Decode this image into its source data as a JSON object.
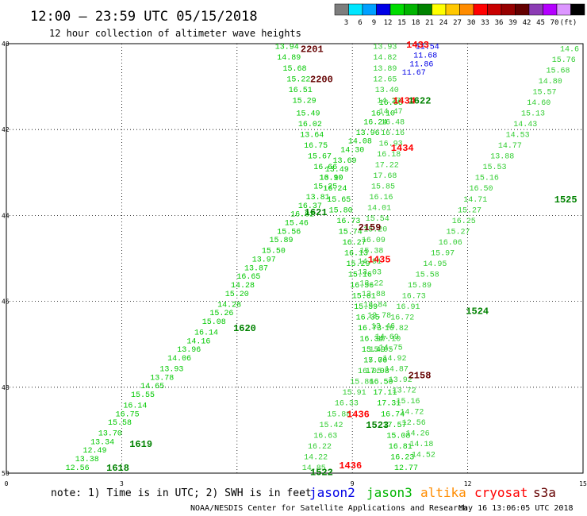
{
  "header": {
    "title": "12:00 — 23:59 UTC 05/15/2018",
    "subtitle": "12 hour collection of altimeter wave heights"
  },
  "color_scale": {
    "colors": [
      "#7d7d7d",
      "#00e6ff",
      "#00a0ff",
      "#0000e6",
      "#00dc00",
      "#00b400",
      "#008200",
      "#ffff00",
      "#ffc800",
      "#ff8c00",
      "#ff0000",
      "#c80000",
      "#960000",
      "#640000",
      "#8c3cb4",
      "#b400ff",
      "#dc96ff",
      "#000000"
    ],
    "labels": [
      "3",
      "6",
      "9",
      "12",
      "15",
      "18",
      "21",
      "24",
      "27",
      "30",
      "33",
      "36",
      "39",
      "42",
      "45",
      "70",
      "(ft)"
    ]
  },
  "footer": {
    "note": "note: 1) Time is in UTC; 2) SWH is in feet",
    "credit": "NOAA/NESDIS Center for Satellite Applications and Research",
    "timestamp": "May 16 13:06:05 UTC 2018"
  },
  "chart_data": {
    "type": "scatter",
    "title": "12:00 — 23:59 UTC 05/15/2018",
    "subtitle": "12 hour collection of altimeter wave heights",
    "xlim": [
      0,
      15
    ],
    "ylim": [
      -50,
      -40
    ],
    "x_ticks": [
      "0",
      "3",
      "9",
      "12",
      "15"
    ],
    "y_ticks": [
      "40",
      "42",
      "44",
      "46",
      "48",
      "50"
    ],
    "grid": true,
    "legend_position": "bottom",
    "units": "ft",
    "series": [
      {
        "name": "jason2",
        "color": "#0000e6"
      },
      {
        "name": "jason3",
        "color": "#00b400"
      },
      {
        "name": "altika",
        "color": "#ff8c00"
      },
      {
        "name": "cryosat",
        "color": "#ff0000"
      },
      {
        "name": "s3a",
        "color": "#640000"
      }
    ],
    "track_times": [
      {
        "label": "2201",
        "x": 7.95,
        "y": -40.1,
        "color": "#640000"
      },
      {
        "label": "2200",
        "x": 8.2,
        "y": -40.8,
        "color": "#640000"
      },
      {
        "label": "1433",
        "x": 10.7,
        "y": -40.0,
        "color": "#ff0000"
      },
      {
        "label": "1434",
        "x": 10.35,
        "y": -41.3,
        "color": "#ff0000"
      },
      {
        "label": "1622",
        "x": 10.75,
        "y": -41.3,
        "color": "#008200"
      },
      {
        "label": "1434",
        "x": 10.3,
        "y": -42.4,
        "color": "#ff0000"
      },
      {
        "label": "1621",
        "x": 8.05,
        "y": -43.9,
        "color": "#008200"
      },
      {
        "label": "2159",
        "x": 9.45,
        "y": -44.25,
        "color": "#640000"
      },
      {
        "label": "1435",
        "x": 9.7,
        "y": -45.0,
        "color": "#ff0000"
      },
      {
        "label": "1525",
        "x": 14.55,
        "y": -43.6,
        "color": "#008200"
      },
      {
        "label": "1524",
        "x": 12.25,
        "y": -46.2,
        "color": "#008200"
      },
      {
        "label": "1620",
        "x": 6.2,
        "y": -46.6,
        "color": "#008200"
      },
      {
        "label": "2158",
        "x": 10.75,
        "y": -47.7,
        "color": "#640000"
      },
      {
        "label": "1436",
        "x": 9.15,
        "y": -48.6,
        "color": "#ff0000"
      },
      {
        "label": "1523",
        "x": 9.65,
        "y": -48.85,
        "color": "#008200"
      },
      {
        "label": "1619",
        "x": 3.5,
        "y": -49.3,
        "color": "#008200"
      },
      {
        "label": "1618",
        "x": 2.9,
        "y": -49.85,
        "color": "#008200"
      },
      {
        "label": "1436",
        "x": 8.95,
        "y": -49.8,
        "color": "#ff0000"
      },
      {
        "label": "1522",
        "x": 8.2,
        "y": -49.95,
        "color": "#008200"
      }
    ],
    "tracks": [
      {
        "id": "jason3-1618-1622",
        "color": "#00c800",
        "points": [
          [
            1.85,
            -49.85,
            "12.56"
          ],
          [
            2.1,
            -49.65,
            "13.38"
          ],
          [
            2.3,
            -49.45,
            "12.49"
          ],
          [
            2.5,
            -49.25,
            "13.34"
          ],
          [
            2.7,
            -49.05,
            "13.70"
          ],
          [
            2.95,
            -48.8,
            "15.58"
          ],
          [
            3.15,
            -48.6,
            "16.75"
          ],
          [
            3.35,
            -48.4,
            "16.14"
          ],
          [
            3.55,
            -48.15,
            "15.55"
          ],
          [
            3.8,
            -47.95,
            "14.65"
          ],
          [
            4.05,
            -47.75,
            "13.78"
          ],
          [
            4.3,
            -47.55,
            "13.93"
          ],
          [
            4.5,
            -47.3,
            "14.06"
          ],
          [
            4.75,
            -47.1,
            "13.96"
          ],
          [
            5.0,
            -46.9,
            "14.16"
          ],
          [
            5.2,
            -46.7,
            "16.14"
          ],
          [
            5.4,
            -46.45,
            "15.08"
          ],
          [
            5.6,
            -46.25,
            "15.26"
          ],
          [
            5.8,
            -46.05,
            "14.28"
          ],
          [
            6.0,
            -45.8,
            "15.20"
          ],
          [
            6.15,
            -45.6,
            "14.28"
          ],
          [
            6.3,
            -45.4,
            "16.65"
          ],
          [
            6.5,
            -45.2,
            "13.87"
          ],
          [
            6.7,
            -45.0,
            "13.97"
          ],
          [
            6.95,
            -44.8,
            "15.50"
          ],
          [
            7.15,
            -44.55,
            "15.89"
          ],
          [
            7.35,
            -44.35,
            "15.56"
          ],
          [
            7.55,
            -44.15,
            "15.46"
          ],
          [
            7.7,
            -43.95,
            "16.82"
          ],
          [
            7.9,
            -43.75,
            "16.37"
          ],
          [
            8.1,
            -43.55,
            "13.81"
          ],
          [
            8.3,
            -43.3,
            "15.25"
          ],
          [
            8.45,
            -43.1,
            "13.90"
          ],
          [
            8.6,
            -42.9,
            "13.49"
          ],
          [
            8.8,
            -42.7,
            "13.69"
          ],
          [
            9.0,
            -42.45,
            "14.30"
          ],
          [
            9.2,
            -42.25,
            "14.08"
          ],
          [
            9.4,
            -42.05,
            "13.96"
          ],
          [
            9.6,
            -41.8,
            "16.24"
          ],
          [
            9.8,
            -41.6,
            "16.10"
          ],
          [
            10.0,
            -41.35,
            "16.66"
          ]
        ]
      },
      {
        "id": "jason3-2158-2201",
        "color": "#00c800",
        "points": [
          [
            7.3,
            -40.05,
            "13.94"
          ],
          [
            7.35,
            -40.3,
            "14.89"
          ],
          [
            7.5,
            -40.55,
            "15.68"
          ],
          [
            7.6,
            -40.8,
            "15.22"
          ],
          [
            7.65,
            -41.05,
            "16.51"
          ],
          [
            7.75,
            -41.3,
            "15.29"
          ],
          [
            7.85,
            -41.6,
            "15.49"
          ],
          [
            7.9,
            -41.85,
            "16.02"
          ],
          [
            7.95,
            -42.1,
            "13.64"
          ],
          [
            8.05,
            -42.35,
            "16.75"
          ],
          [
            8.15,
            -42.6,
            "15.67"
          ],
          [
            8.3,
            -42.85,
            "16.66"
          ],
          [
            8.45,
            -43.1,
            "16.10"
          ],
          [
            8.55,
            -43.35,
            "16.24"
          ],
          [
            8.65,
            -43.6,
            "15.65"
          ],
          [
            8.7,
            -43.85,
            "15.80"
          ],
          [
            8.9,
            -44.1,
            "16.73"
          ],
          [
            8.95,
            -44.35,
            "15.74"
          ],
          [
            9.05,
            -44.6,
            "16.27"
          ],
          [
            9.1,
            -44.85,
            "16.13"
          ],
          [
            9.15,
            -45.1,
            "15.29"
          ],
          [
            9.2,
            -45.35,
            "15.16"
          ],
          [
            9.25,
            -45.6,
            "16.56"
          ],
          [
            9.3,
            -45.85,
            "15.61"
          ],
          [
            9.35,
            -46.1,
            "15.59"
          ],
          [
            9.4,
            -46.35,
            "16.35"
          ],
          [
            9.45,
            -46.6,
            "16.73"
          ],
          [
            9.5,
            -46.85,
            "16.34"
          ],
          [
            9.55,
            -47.1,
            "15.49"
          ],
          [
            9.6,
            -47.35,
            "17.06"
          ],
          [
            9.65,
            -47.6,
            "17.08"
          ],
          [
            9.75,
            -47.85,
            "16.50"
          ],
          [
            9.85,
            -48.1,
            "17.11"
          ],
          [
            9.95,
            -48.35,
            "17.31"
          ],
          [
            10.05,
            -48.6,
            "16.74"
          ],
          [
            10.1,
            -48.85,
            "17.57"
          ],
          [
            10.2,
            -49.1,
            "15.08"
          ],
          [
            10.25,
            -49.35,
            "16.81"
          ],
          [
            10.3,
            -49.6,
            "16.23"
          ],
          [
            10.4,
            -49.85,
            "12.77"
          ]
        ]
      },
      {
        "id": "jason3-1433-1436",
        "color": "#32cd32",
        "points": [
          [
            9.85,
            -40.05,
            "13.93"
          ],
          [
            9.85,
            -40.3,
            "14.82"
          ],
          [
            9.85,
            -40.55,
            "13.89"
          ],
          [
            9.85,
            -40.8,
            "12.65"
          ],
          [
            9.9,
            -41.05,
            "13.40"
          ],
          [
            9.95,
            -41.3,
            "14.27"
          ],
          [
            10.0,
            -41.55,
            "14.47"
          ],
          [
            10.05,
            -41.8,
            "16.48"
          ],
          [
            10.05,
            -42.05,
            "16.16"
          ],
          [
            10.0,
            -42.3,
            "16.93"
          ],
          [
            9.95,
            -42.55,
            "16.18"
          ],
          [
            9.9,
            -42.8,
            "17.22"
          ],
          [
            9.85,
            -43.05,
            "17.68"
          ],
          [
            9.8,
            -43.3,
            "15.85"
          ],
          [
            9.75,
            -43.55,
            "16.16"
          ],
          [
            9.7,
            -43.8,
            "14.01"
          ],
          [
            9.65,
            -44.05,
            "15.54"
          ],
          [
            9.6,
            -44.3,
            "15.20"
          ],
          [
            9.55,
            -44.55,
            "16.09"
          ],
          [
            9.5,
            -44.8,
            "15.38"
          ],
          [
            9.45,
            -45.05,
            "14.91"
          ],
          [
            9.45,
            -45.3,
            "13.03"
          ],
          [
            9.5,
            -45.55,
            "13.22"
          ],
          [
            9.55,
            -45.8,
            "13.88"
          ],
          [
            9.6,
            -46.05,
            "13.84"
          ],
          [
            9.7,
            -46.3,
            "12.78"
          ],
          [
            9.8,
            -46.55,
            "13.46"
          ],
          [
            9.9,
            -46.8,
            "14.69"
          ],
          [
            10.0,
            -47.05,
            "14.75"
          ],
          [
            10.1,
            -47.3,
            "14.92"
          ],
          [
            10.15,
            -47.55,
            "14.87"
          ],
          [
            10.25,
            -47.8,
            "13.92"
          ],
          [
            10.35,
            -48.05,
            "13.72"
          ],
          [
            10.45,
            -48.3,
            "15.16"
          ],
          [
            10.55,
            -48.55,
            "14.72"
          ],
          [
            10.6,
            -48.8,
            "12.56"
          ],
          [
            10.7,
            -49.05,
            "14.26"
          ],
          [
            10.8,
            -49.3,
            "14.18"
          ],
          [
            10.85,
            -49.55,
            "14.52"
          ]
        ]
      },
      {
        "id": "jason3-1522-1525",
        "color": "#32cd32",
        "points": [
          [
            8.0,
            -49.85,
            "14.85"
          ],
          [
            8.05,
            -49.6,
            "14.22"
          ],
          [
            8.15,
            -49.35,
            "16.22"
          ],
          [
            8.3,
            -49.1,
            "16.63"
          ],
          [
            8.45,
            -48.85,
            "15.42"
          ],
          [
            8.65,
            -48.6,
            "15.88"
          ],
          [
            8.85,
            -48.35,
            "16.33"
          ],
          [
            9.05,
            -48.1,
            "15.91"
          ],
          [
            9.25,
            -47.85,
            "15.86"
          ],
          [
            9.45,
            -47.6,
            "16.05"
          ],
          [
            9.6,
            -47.35,
            "15.79"
          ],
          [
            9.75,
            -47.1,
            "15.95"
          ],
          [
            9.95,
            -46.85,
            "17.10"
          ],
          [
            10.15,
            -46.6,
            "16.82"
          ],
          [
            10.3,
            -46.35,
            "16.72"
          ],
          [
            10.45,
            -46.1,
            "16.91"
          ],
          [
            10.6,
            -45.85,
            "16.73"
          ],
          [
            10.75,
            -45.6,
            "15.89"
          ],
          [
            10.95,
            -45.35,
            "15.58"
          ],
          [
            11.15,
            -45.1,
            "14.95"
          ],
          [
            11.35,
            -44.85,
            "15.97"
          ],
          [
            11.55,
            -44.6,
            "16.06"
          ],
          [
            11.75,
            -44.35,
            "15.27"
          ],
          [
            11.9,
            -44.1,
            "16.25"
          ],
          [
            12.05,
            -43.85,
            "15.27"
          ],
          [
            12.2,
            -43.6,
            "14.71"
          ],
          [
            12.35,
            -43.35,
            "16.50"
          ],
          [
            12.5,
            -43.1,
            "15.16"
          ],
          [
            12.7,
            -42.85,
            "15.53"
          ],
          [
            12.9,
            -42.6,
            "13.88"
          ],
          [
            13.1,
            -42.35,
            "14.77"
          ],
          [
            13.3,
            -42.1,
            "14.53"
          ],
          [
            13.5,
            -41.85,
            "14.43"
          ],
          [
            13.7,
            -41.6,
            "15.13"
          ],
          [
            13.85,
            -41.35,
            "14.60"
          ],
          [
            14.0,
            -41.1,
            "15.57"
          ],
          [
            14.15,
            -40.85,
            "14.80"
          ],
          [
            14.35,
            -40.6,
            "15.68"
          ],
          [
            14.5,
            -40.35,
            "15.76"
          ],
          [
            14.65,
            -40.1,
            "14.6"
          ]
        ]
      },
      {
        "id": "jason2-1433",
        "color": "#0000e6",
        "points": [
          [
            10.95,
            -40.05,
            "11.54"
          ],
          [
            10.9,
            -40.25,
            "11.68"
          ],
          [
            10.8,
            -40.45,
            "11.86"
          ],
          [
            10.6,
            -40.65,
            "11.67"
          ]
        ]
      }
    ]
  }
}
